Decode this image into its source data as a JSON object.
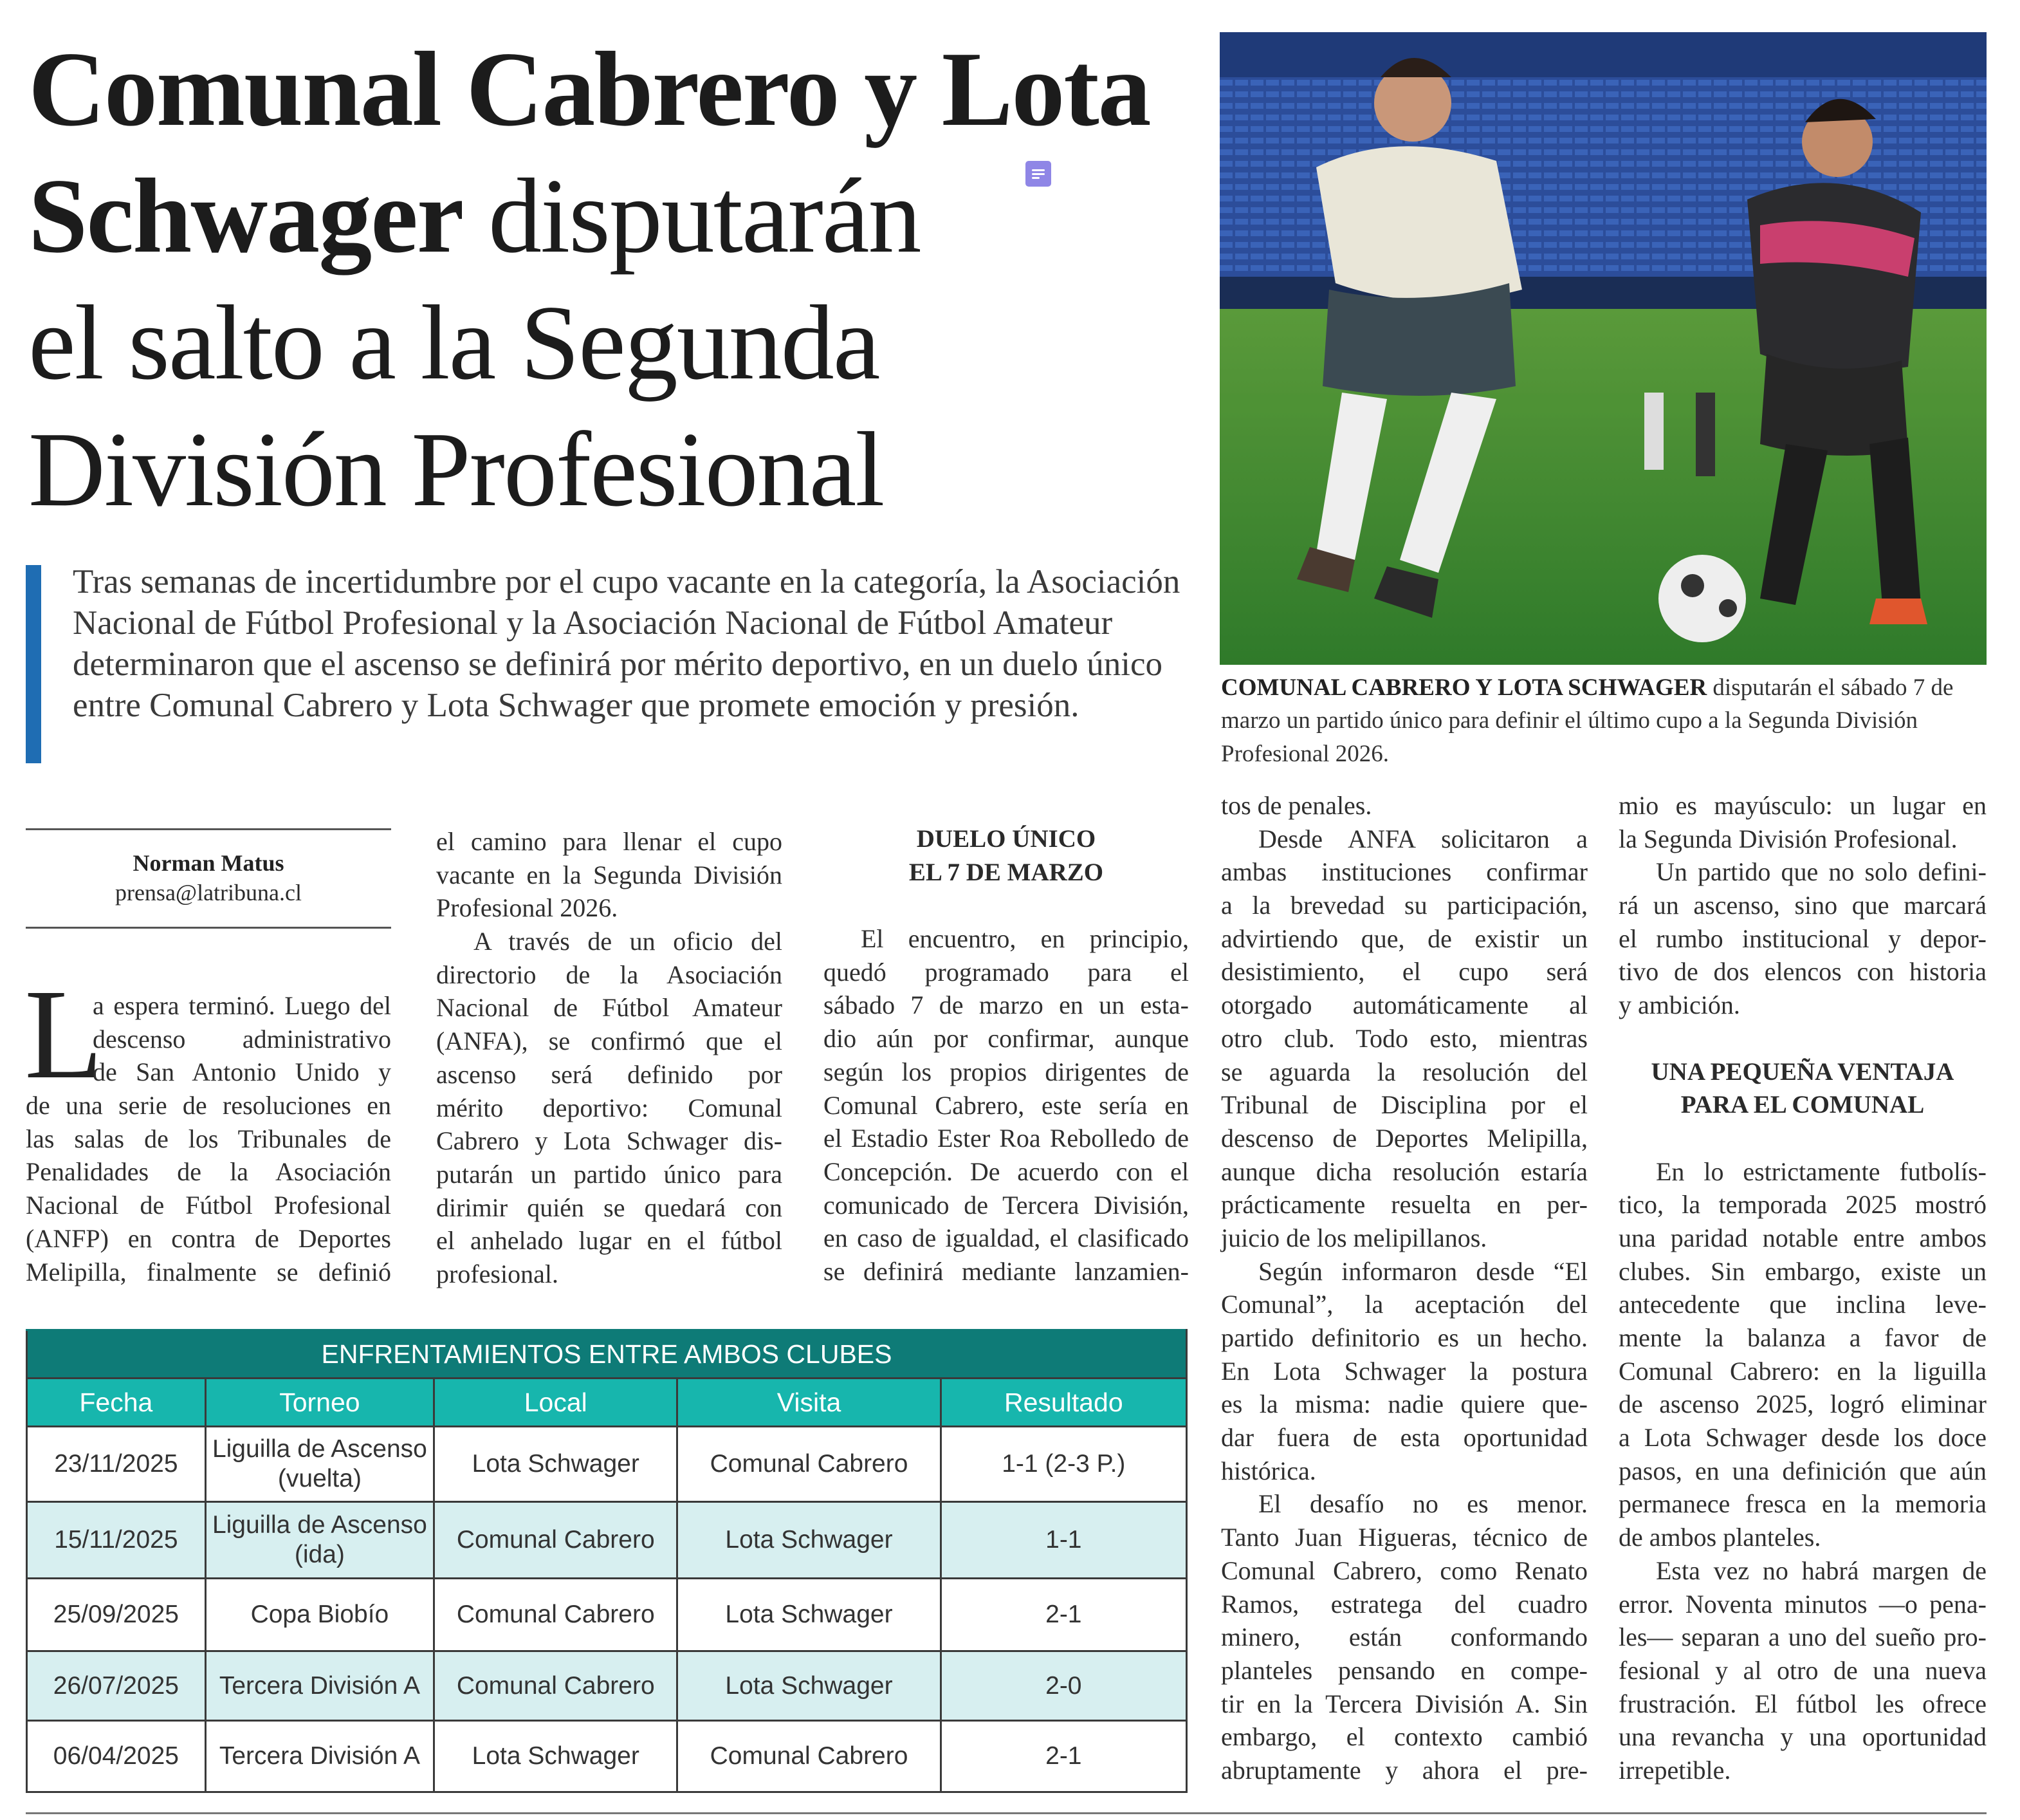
{
  "headline": {
    "line1": "Comunal Cabrero y Lota",
    "line2_bold": "Schwager",
    "line2_rest": " disputarán",
    "line3": "el salto a la Segunda",
    "line4": "División Profesional"
  },
  "photo": {
    "icon": "football-match-photo",
    "colors": {
      "seats": "#2c4d9a",
      "pitch": "#3f8a2e",
      "home_kit": "#e9e6d8",
      "away_kit": "#2b2b2e"
    }
  },
  "caption": {
    "bold": "COMUNAL CABRERO Y LOTA SCHWAGER",
    "text": " disputarán el sábado 7 de marzo un partido único para definir el último cupo a la Segunda División Profesional 2026."
  },
  "lead": "Tras semanas de incertidumbre por el cupo vacante en la categoría, la Asociación Nacional de Fútbol Profesional y la Asociación Nacional de Fútbol Amateur determinaron que el ascenso se definirá por mérito deportivo, en un duelo único entre Comunal Cabrero y Lota Schwager que promete emoción y presión.",
  "byline": {
    "name": "Norman Matus",
    "email": "prensa@latribuna.cl"
  },
  "accent_color": "#1f6db3",
  "dropcap": "L",
  "columns": [
    {
      "blocks": [
        {
          "type": "p",
          "dropcap": true,
          "continues": true,
          "lines": [
            "a espera terminó. Luego del",
            "descenso administrativo",
            "de San Antonio Unido y",
            "de una serie de resoluciones en",
            "las salas de los Tribunales de",
            "Penalidades de la Asociación",
            "Nacional de Fútbol Profesional",
            "(ANFP) en contra de Deportes",
            "Melipilla, finalmente se definió"
          ]
        }
      ]
    },
    {
      "blocks": [
        {
          "type": "p",
          "continued": true,
          "lines": [
            "el camino para llenar el cupo",
            "vacante en la Segunda División",
            "Profesional 2026."
          ]
        },
        {
          "type": "p",
          "lines": [
            "A través de un oficio del",
            "directorio de la Asociación",
            "Nacional de Fútbol Amateur",
            "(ANFA), se confirmó que el",
            "ascenso será definido por",
            "mérito deportivo: Comunal",
            "Cabrero y Lota Schwager dis-",
            "putarán un partido único para",
            "dirimir quién se quedará con",
            "el anhelado lugar en el fútbol",
            "profesional."
          ]
        }
      ]
    },
    {
      "blocks": [
        {
          "type": "h",
          "lines": [
            "DUELO ÚNICO",
            "EL 7 DE MARZO"
          ]
        },
        {
          "type": "p",
          "continues": true,
          "lines": [
            "El encuentro, en principio,",
            "quedó programado para el",
            "sábado 7 de marzo en un esta-",
            "dio aún por confirmar, aunque",
            "según los propios dirigentes de",
            "Comunal Cabrero, este sería en",
            "el Estadio Ester Roa Rebolledo de",
            "Concepción. De acuerdo con el",
            "comunicado de Tercera División,",
            "en caso de igualdad, el clasificado",
            "se definirá mediante lanzamien-"
          ]
        }
      ]
    },
    {
      "blocks": [
        {
          "type": "p",
          "continued": true,
          "lines": [
            "tos de penales."
          ]
        },
        {
          "type": "p",
          "lines": [
            "Desde ANFA solicitaron a",
            "ambas instituciones confirmar",
            "a la brevedad su participación,",
            "advirtiendo que, de existir un",
            "desistimiento, el cupo será",
            "otorgado automáticamente al",
            "otro club. Todo esto, mientras",
            "se aguarda la resolución del",
            "Tribunal de Disciplina por el",
            "descenso de Deportes Melipilla,",
            "aunque dicha resolución estaría",
            "prácticamente resuelta en per-",
            "juicio de los melipillanos."
          ]
        },
        {
          "type": "p",
          "lines": [
            "Según informaron desde “El",
            "Comunal”, la aceptación del",
            "partido definitorio es un hecho.",
            "En Lota Schwager la postura",
            "es la misma: nadie quiere que-",
            "dar fuera de esta oportunidad",
            "histórica."
          ]
        },
        {
          "type": "p",
          "continues": true,
          "lines": [
            "El desafío no es menor.",
            "Tanto Juan Higueras, técnico de",
            "Comunal Cabrero, como Renato",
            "Ramos, estratega del cuadro",
            "minero, están conformando",
            "planteles pensando en compe-",
            "tir en la Tercera División A. Sin",
            "embargo, el contexto cambió",
            "abruptamente y ahora el pre-"
          ]
        }
      ]
    },
    {
      "blocks": [
        {
          "type": "p",
          "continued": true,
          "lines": [
            "mio es mayúsculo: un lugar en",
            "la Segunda División Profesional."
          ]
        },
        {
          "type": "p",
          "lines": [
            "Un partido que no solo defini-",
            "rá un ascenso, sino que marcará",
            "el rumbo institucional y depor-",
            "tivo de dos elencos con historia",
            "y ambición."
          ]
        },
        {
          "type": "h",
          "spaced": true,
          "lines": [
            "UNA PEQUEÑA VENTAJA",
            "PARA EL COMUNAL"
          ]
        },
        {
          "type": "p",
          "lines": [
            "En lo estrictamente futbolís-",
            "tico, la temporada 2025 mostró",
            "una paridad notable entre ambos",
            "clubes. Sin embargo, existe un",
            "antecedente que inclina leve-",
            "mente la balanza a favor de",
            "Comunal Cabrero: en la liguilla",
            "de ascenso 2025, logró eliminar",
            "a Lota Schwager desde los doce",
            "pasos, en una definición que aún",
            "permanece fresca en la memoria",
            "de ambos planteles."
          ]
        },
        {
          "type": "p",
          "lines": [
            "Esta vez no habrá margen de",
            "error. Noventa minutos —o pena-",
            "les— separan a uno del sueño pro-",
            "fesional y al otro de una nueva",
            "frustración. El fútbol les ofrece",
            "una revancha y una oportunidad",
            "irrepetible."
          ]
        }
      ]
    }
  ],
  "table": {
    "title": "ENFRENTAMIENTOS ENTRE AMBOS CLUBES",
    "headers": [
      "Fecha",
      "Torneo",
      "Local",
      "Visita",
      "Resultado"
    ],
    "rows": [
      [
        "23/11/2025",
        "Liguilla de Ascenso (vuelta)",
        "Lota Schwager",
        "Comunal Cabrero",
        "1-1 (2-3 P.)"
      ],
      [
        "15/11/2025",
        "Liguilla de Ascenso (ida)",
        "Comunal Cabrero",
        "Lota Schwager",
        "1-1"
      ],
      [
        "25/09/2025",
        "Copa Biobío",
        "Comunal Cabrero",
        "Lota Schwager",
        "2-1"
      ],
      [
        "26/07/2025",
        "Tercera División A",
        "Comunal Cabrero",
        "Lota Schwager",
        "2-0"
      ],
      [
        "06/04/2025",
        "Tercera División A",
        "Lota Schwager",
        "Comunal Cabrero",
        "2-1"
      ]
    ],
    "colors": {
      "title": "#0e7b77",
      "header": "#17b6ad",
      "alt_row": "#d7eff0"
    }
  }
}
